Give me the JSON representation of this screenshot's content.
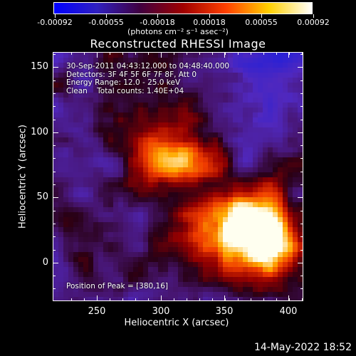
{
  "colorbar": {
    "labels": [
      "-0.00092",
      "-0.00055",
      "-0.00018",
      "0.00018",
      "0.00055",
      "0.00092"
    ],
    "units": "(photons cm⁻² s⁻¹ asec⁻²)",
    "colors": [
      "#0000ff",
      "#3020c0",
      "#400040",
      "#a00000",
      "#ff4000",
      "#ffd000",
      "#ffffff"
    ]
  },
  "plot": {
    "title": "Reconstructed RHESSI Image",
    "info_lines": [
      "30-Sep-2011 04:43:12.000 to 04:48:40.000",
      "Detectors: 3F 4F 5F 6F 7F 8F, Att 0",
      "Energy Range: 12.0 - 25.0 keV",
      "Clean    Total counts: 1.40E+04"
    ],
    "peak_text": "Position of Peak = [380,16]",
    "xlabel": "Heliocentric X (arcsec)",
    "ylabel": "Heliocentric Y (arcsec)",
    "xticks": [
      "250",
      "300",
      "350",
      "400"
    ],
    "yticks": [
      "150",
      "100",
      "50",
      "0"
    ]
  },
  "chart_data": {
    "type": "heatmap",
    "title": "Reconstructed RHESSI Image",
    "xlabel": "Heliocentric X (arcsec)",
    "ylabel": "Heliocentric Y (arcsec)",
    "xlim": [
      216,
      412
    ],
    "ylim": [
      -30,
      165
    ],
    "sources": [
      {
        "x": 305,
        "y": 85,
        "intensity": 0.95
      },
      {
        "x": 380,
        "y": 16,
        "intensity": 1.0
      },
      {
        "x": 355,
        "y": 35,
        "intensity": 0.85
      }
    ]
  },
  "footer": {
    "date": "14-May-2022 18:52"
  }
}
